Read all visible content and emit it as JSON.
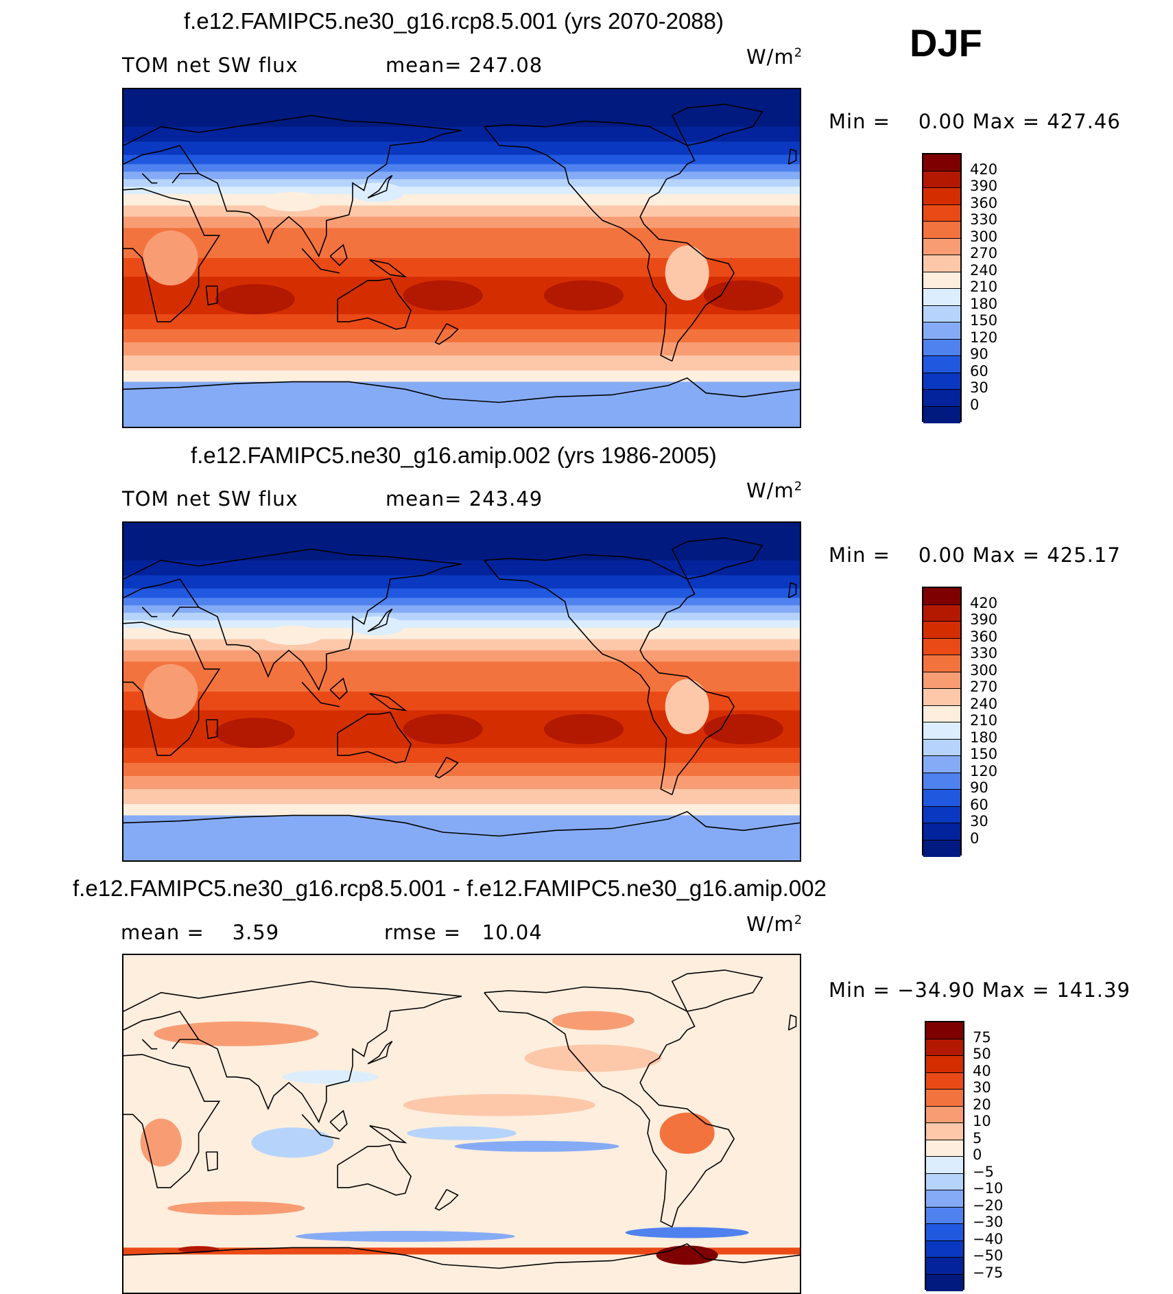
{
  "season": "DJF",
  "panels": [
    {
      "title": "f.e12.FAMIPC5.ne30_g16.rcp8.5.001 (yrs 2070-2088)",
      "left_label": "TOM net SW flux",
      "center_label": "mean= 247.08",
      "units": "W/m",
      "units_exp": "2",
      "minmax": "Min =    0.00 Max = 427.46",
      "kind": "absolute",
      "colorbar": {
        "labels": [
          "420",
          "390",
          "360",
          "330",
          "300",
          "270",
          "240",
          "210",
          "180",
          "150",
          "120",
          "90",
          "60",
          "30",
          "0"
        ],
        "colors": [
          "#7f0000",
          "#b31800",
          "#d42e00",
          "#ea4a16",
          "#f3733e",
          "#f89d73",
          "#fdc8aa",
          "#fdeede",
          "#dceefd",
          "#b6d4fb",
          "#86abf6",
          "#4f82ef",
          "#2058e0",
          "#0a38c0",
          "#03239c",
          "#001a80"
        ]
      }
    },
    {
      "title": "f.e12.FAMIPC5.ne30_g16.amip.002 (yrs 1986-2005)",
      "left_label": "TOM net SW flux",
      "center_label": "mean= 243.49",
      "units": "W/m",
      "units_exp": "2",
      "minmax": "Min =    0.00 Max = 425.17",
      "kind": "absolute",
      "colorbar": {
        "labels": [
          "420",
          "390",
          "360",
          "330",
          "300",
          "270",
          "240",
          "210",
          "180",
          "150",
          "120",
          "90",
          "60",
          "30",
          "0"
        ],
        "colors": [
          "#7f0000",
          "#b31800",
          "#d42e00",
          "#ea4a16",
          "#f3733e",
          "#f89d73",
          "#fdc8aa",
          "#fdeede",
          "#dceefd",
          "#b6d4fb",
          "#86abf6",
          "#4f82ef",
          "#2058e0",
          "#0a38c0",
          "#03239c",
          "#001a80"
        ]
      }
    },
    {
      "title": "f.e12.FAMIPC5.ne30_g16.rcp8.5.001 - f.e12.FAMIPC5.ne30_g16.amip.002",
      "left_label": "mean =    3.59",
      "center_label": "rmse =   10.04",
      "units": "W/m",
      "units_exp": "2",
      "minmax": "Min = −34.90 Max = 141.39",
      "kind": "difference",
      "colorbar": {
        "labels": [
          "75",
          "50",
          "40",
          "30",
          "20",
          "10",
          "5",
          "0",
          "−5",
          "−10",
          "−20",
          "−30",
          "−40",
          "−50",
          "−75"
        ],
        "colors": [
          "#7f0000",
          "#b31800",
          "#d42e00",
          "#ea4a16",
          "#f3733e",
          "#f89d73",
          "#fdc8aa",
          "#fdeede",
          "#dceefd",
          "#b6d4fb",
          "#86abf6",
          "#4f82ef",
          "#2058e0",
          "#0a38c0",
          "#03239c",
          "#001a80"
        ]
      }
    }
  ]
}
